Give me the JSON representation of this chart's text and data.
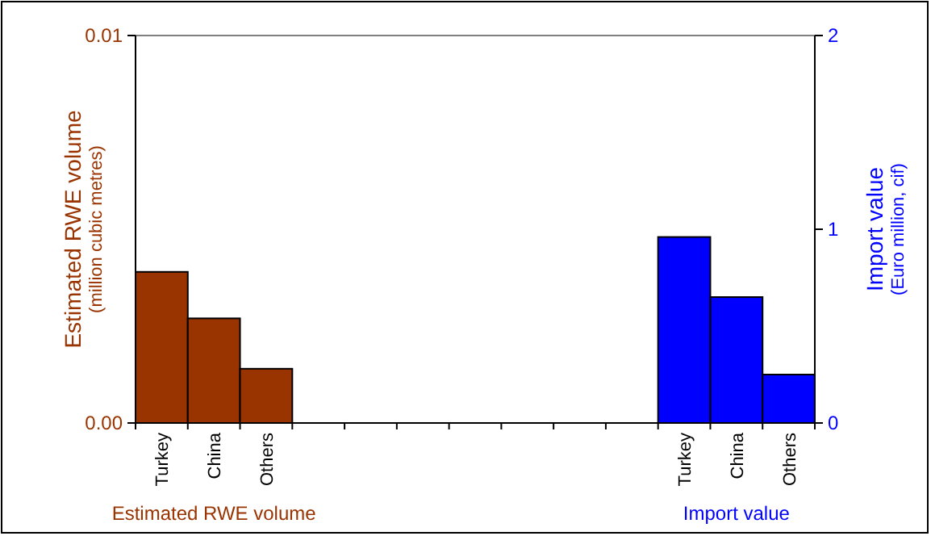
{
  "chart_data": {
    "type": "bar",
    "categories": [
      "Turkey",
      "China",
      "Others",
      null,
      null,
      null,
      null,
      null,
      null,
      null,
      "Turkey",
      "China",
      "Others"
    ],
    "series": [
      {
        "name": "Estimated RWE volume",
        "color": "#993300",
        "values": [
          0.0039,
          0.0027,
          0.0014,
          null,
          null,
          null,
          null,
          null,
          null,
          null,
          null,
          null,
          null
        ]
      },
      {
        "name": "Import value",
        "color": "#0000ff",
        "axis": "y2",
        "values": [
          null,
          null,
          null,
          null,
          null,
          null,
          null,
          null,
          null,
          null,
          0.96,
          0.65,
          0.25
        ]
      }
    ],
    "ylabel": "Estimated RWE volume\n(million cubic metres)",
    "y2label": "Import value\n(Euro million, cif)",
    "ylim": [
      0,
      0.01
    ],
    "yticks": [
      {
        "value": 0,
        "label": "0.00"
      },
      {
        "value": 0.01,
        "label": "0.01"
      }
    ],
    "y2lim": [
      0,
      2
    ],
    "y2ticks": [
      0,
      1,
      2
    ],
    "legend": "bottom"
  }
}
